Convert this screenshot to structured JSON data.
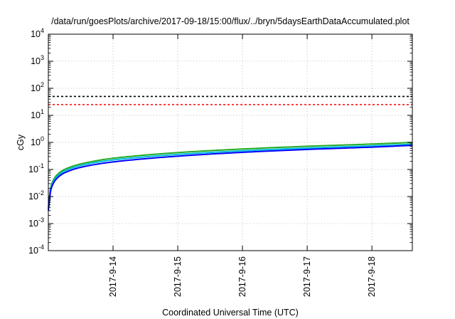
{
  "chart_data": {
    "type": "line",
    "title": "/data/run/goesPlots/archive/2017-09-18/15:00/flux/../bryn/5daysEarthDataAccumulated.plot",
    "xlabel": "Coordinated Universal Time (UTC)",
    "ylabel": "cGy",
    "y_scale": "log",
    "ylim_exponents": [
      -4,
      4
    ],
    "y_tick_base": "10",
    "y_tick_exponents": [
      "-4",
      "-3",
      "-2",
      "-1",
      "0",
      "1",
      "2",
      "3",
      "4"
    ],
    "xlim": [
      "2017-09-13T00:00",
      "2017-09-18T15:00"
    ],
    "x_tick_values": [
      "2017-09-14T00:00",
      "2017-09-15T00:00",
      "2017-09-16T00:00",
      "2017-09-17T00:00",
      "2017-09-18T00:00"
    ],
    "x_tick_labels": [
      "2017-9-14",
      "2017-9-15",
      "2017-9-16",
      "2017-9-17",
      "2017-9-18"
    ],
    "grid": true,
    "legend": "none",
    "reference_lines": [
      {
        "value": 50,
        "color": "#000000",
        "style": "dashed"
      },
      {
        "value": 25,
        "color": "#ff0000",
        "style": "dashed"
      }
    ],
    "series": [
      {
        "color": "#22aa22",
        "x": [
          "2017-09-13T00:00",
          "2017-09-13T01:00",
          "2017-09-13T03:00",
          "2017-09-13T06:00",
          "2017-09-13T12:00",
          "2017-09-14T00:00",
          "2017-09-15T00:00",
          "2017-09-16T00:00",
          "2017-09-17T00:00",
          "2017-09-18T00:00",
          "2017-09-18T15:00"
        ],
        "y": [
          0.004,
          0.025,
          0.06,
          0.1,
          0.16,
          0.26,
          0.42,
          0.57,
          0.72,
          0.87,
          1.0
        ]
      },
      {
        "color": "#00bbdd",
        "x": [
          "2017-09-13T00:00",
          "2017-09-13T01:00",
          "2017-09-13T03:00",
          "2017-09-13T06:00",
          "2017-09-13T12:00",
          "2017-09-14T00:00",
          "2017-09-15T00:00",
          "2017-09-16T00:00",
          "2017-09-17T00:00",
          "2017-09-18T00:00",
          "2017-09-18T15:00"
        ],
        "y": [
          0.0035,
          0.022,
          0.052,
          0.087,
          0.14,
          0.225,
          0.36,
          0.49,
          0.62,
          0.75,
          0.86
        ]
      },
      {
        "color": "#0000ff",
        "x": [
          "2017-09-13T00:00",
          "2017-09-13T01:00",
          "2017-09-13T03:00",
          "2017-09-13T06:00",
          "2017-09-13T12:00",
          "2017-09-14T00:00",
          "2017-09-15T00:00",
          "2017-09-16T00:00",
          "2017-09-17T00:00",
          "2017-09-18T00:00",
          "2017-09-18T15:00"
        ],
        "y": [
          0.003,
          0.019,
          0.045,
          0.075,
          0.12,
          0.19,
          0.31,
          0.43,
          0.55,
          0.67,
          0.78
        ]
      }
    ]
  }
}
